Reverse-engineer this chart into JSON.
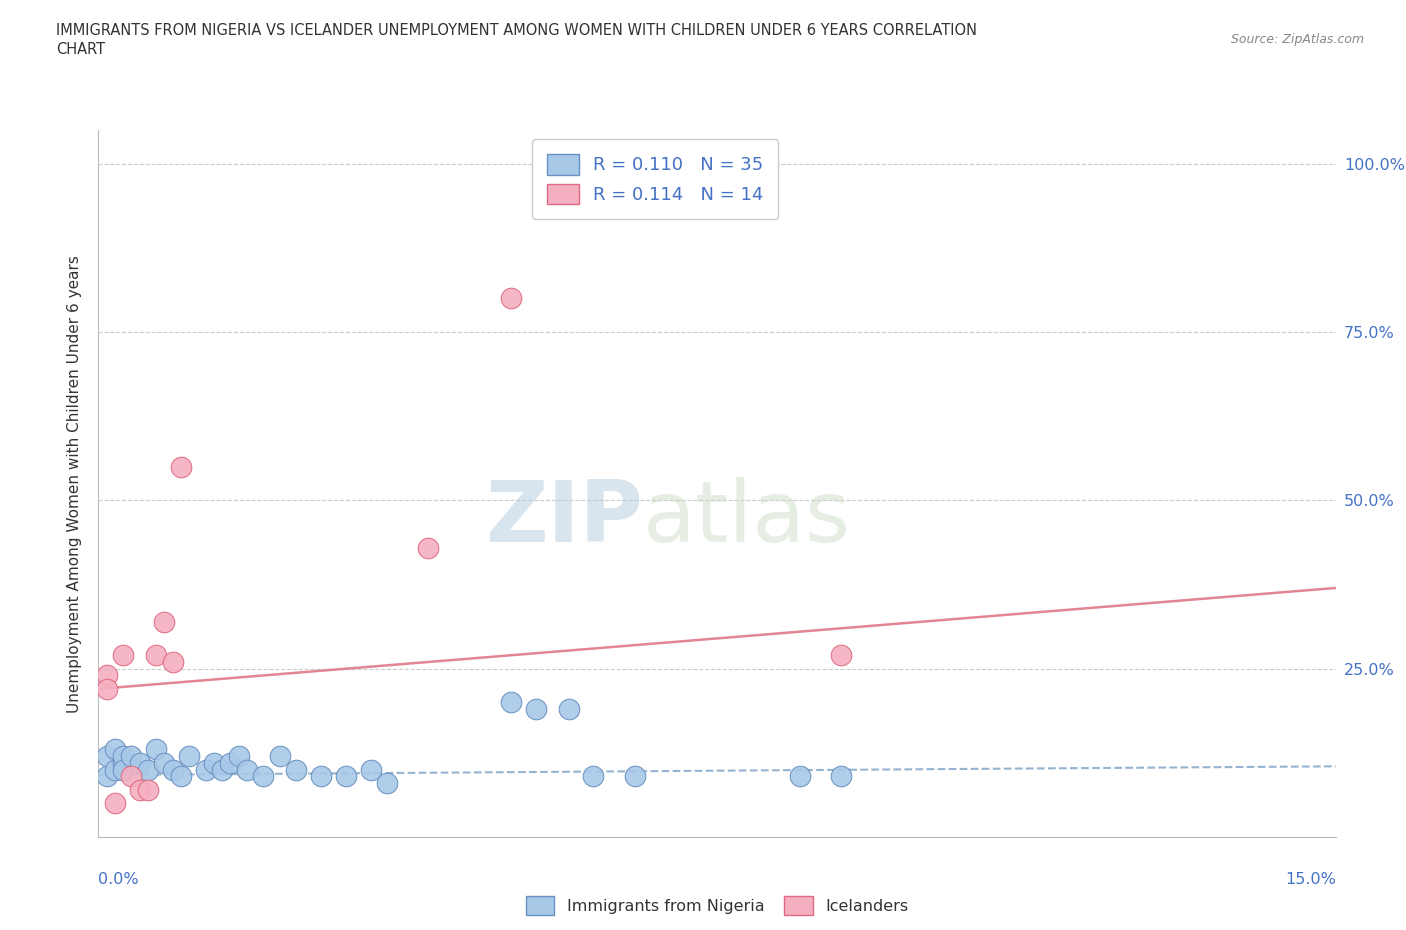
{
  "title_line1": "IMMIGRANTS FROM NIGERIA VS ICELANDER UNEMPLOYMENT AMONG WOMEN WITH CHILDREN UNDER 6 YEARS CORRELATION",
  "title_line2": "CHART",
  "source": "Source: ZipAtlas.com",
  "ylabel": "Unemployment Among Women with Children Under 6 years",
  "xmin": 0.0,
  "xmax": 0.15,
  "ymin": 0.0,
  "ymax": 1.05,
  "ytick_positions": [
    0.25,
    0.5,
    0.75,
    1.0
  ],
  "ytick_labels": [
    "25.0%",
    "50.0%",
    "75.0%",
    "100.0%"
  ],
  "blue_scatter_color": "#a8c8e8",
  "blue_edge_color": "#6890c0",
  "pink_scatter_color": "#f4b0c0",
  "pink_edge_color": "#e06880",
  "blue_line_color": "#8aabcc",
  "pink_line_color": "#e07888",
  "label_color": "#4472c4",
  "text_color": "#333333",
  "grid_color": "#cccccc",
  "legend_r1": "R = 0.110   N = 35",
  "legend_r2": "R = 0.114   N = 14",
  "nigeria_x": [
    0.001,
    0.001,
    0.002,
    0.002,
    0.003,
    0.003,
    0.003,
    0.004,
    0.005,
    0.006,
    0.007,
    0.008,
    0.009,
    0.01,
    0.011,
    0.013,
    0.014,
    0.015,
    0.016,
    0.017,
    0.018,
    0.02,
    0.022,
    0.024,
    0.027,
    0.03,
    0.033,
    0.035,
    0.05,
    0.053,
    0.057,
    0.06,
    0.065,
    0.085,
    0.09
  ],
  "nigeria_y": [
    0.09,
    0.12,
    0.1,
    0.13,
    0.11,
    0.12,
    0.1,
    0.12,
    0.11,
    0.1,
    0.13,
    0.11,
    0.1,
    0.09,
    0.12,
    0.1,
    0.11,
    0.1,
    0.11,
    0.12,
    0.1,
    0.09,
    0.12,
    0.1,
    0.09,
    0.09,
    0.1,
    0.08,
    0.2,
    0.19,
    0.19,
    0.09,
    0.09,
    0.09,
    0.09
  ],
  "iceland_x": [
    0.001,
    0.001,
    0.002,
    0.003,
    0.004,
    0.005,
    0.006,
    0.007,
    0.008,
    0.009,
    0.01,
    0.04,
    0.05,
    0.09
  ],
  "iceland_y": [
    0.24,
    0.22,
    0.05,
    0.27,
    0.09,
    0.07,
    0.07,
    0.27,
    0.32,
    0.26,
    0.55,
    0.43,
    0.8,
    0.27
  ],
  "nigeria_trend_y0": 0.092,
  "nigeria_trend_y1": 0.105,
  "iceland_trend_y0": 0.22,
  "iceland_trend_y1": 0.37,
  "watermark_zip": "ZIP",
  "watermark_atlas": "atlas"
}
